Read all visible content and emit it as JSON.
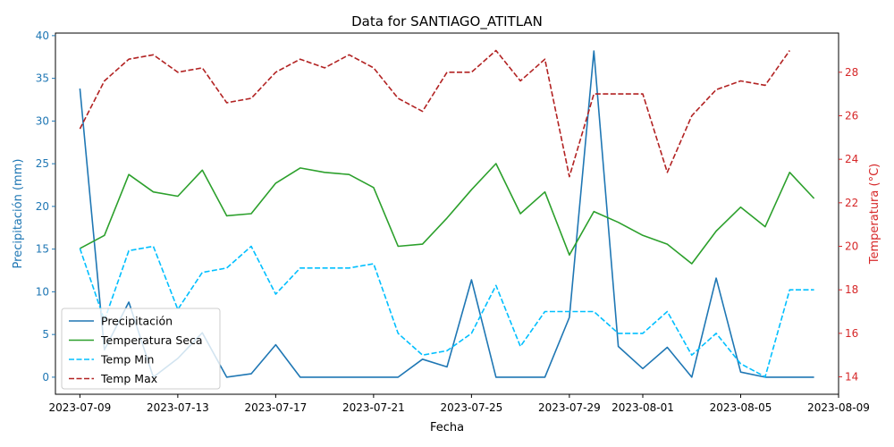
{
  "chart_data": {
    "type": "line",
    "title": "Data for SANTIAGO_ATITLAN",
    "xlabel": "Fecha",
    "ylabel_left": "Precipitación (mm)",
    "ylabel_right": "Temperatura (°C)",
    "x_tick_labels": [
      "2023-07-09",
      "2023-07-13",
      "2023-07-17",
      "2023-07-21",
      "2023-07-25",
      "2023-07-29",
      "2023-08-01",
      "2023-08-05",
      "2023-08-09"
    ],
    "y_left_ticks": [
      "0",
      "5",
      "10",
      "15",
      "20",
      "25",
      "30",
      "35",
      "40"
    ],
    "y_right_ticks": [
      "14",
      "16",
      "18",
      "20",
      "22",
      "24",
      "26",
      "28"
    ],
    "xlim": [
      "2023-07-08",
      "2023-08-09"
    ],
    "ylim_left": [
      -2,
      40.3
    ],
    "ylim_right": [
      13.2,
      29.8
    ],
    "left_axis_color": "#1f77b4",
    "right_axis_color": "#d62728",
    "legend_position": "lower-left",
    "dates": [
      "2023-07-09",
      "2023-07-10",
      "2023-07-11",
      "2023-07-12",
      "2023-07-13",
      "2023-07-14",
      "2023-07-15",
      "2023-07-16",
      "2023-07-17",
      "2023-07-18",
      "2023-07-19",
      "2023-07-20",
      "2023-07-21",
      "2023-07-22",
      "2023-07-23",
      "2023-07-24",
      "2023-07-25",
      "2023-07-26",
      "2023-07-27",
      "2023-07-28",
      "2023-07-29",
      "2023-07-30",
      "2023-07-31",
      "2023-08-01",
      "2023-08-02",
      "2023-08-03",
      "2023-08-04",
      "2023-08-05",
      "2023-08-06",
      "2023-08-07",
      "2023-08-08"
    ],
    "series": [
      {
        "name": "Precipitación",
        "axis": "left",
        "color": "#1f77b4",
        "style": "solid",
        "values": [
          33.8,
          3.2,
          8.8,
          0.0,
          2.2,
          5.2,
          0.0,
          0.4,
          3.8,
          0.0,
          0.0,
          0.0,
          0.0,
          0.0,
          2.1,
          1.2,
          11.4,
          0.0,
          0.0,
          0.0,
          7.0,
          38.2,
          3.6,
          1.0,
          3.5,
          0.0,
          11.6,
          0.6,
          0.0,
          0.0,
          0.0
        ]
      },
      {
        "name": "Temperatura Seca",
        "axis": "right",
        "color": "#2ca02c",
        "style": "solid",
        "values": [
          19.9,
          20.5,
          23.3,
          22.5,
          22.3,
          23.5,
          21.4,
          21.5,
          22.9,
          23.6,
          23.4,
          23.3,
          22.7,
          20.0,
          20.1,
          21.3,
          22.6,
          23.8,
          21.5,
          22.5,
          19.6,
          21.6,
          21.1,
          20.5,
          20.1,
          19.2,
          20.7,
          21.8,
          20.9,
          23.4,
          22.2
        ]
      },
      {
        "name": "Temp Min",
        "axis": "right",
        "color": "#00bfff",
        "style": "dashed",
        "values": [
          19.9,
          16.6,
          19.8,
          20.0,
          17.1,
          18.8,
          19.0,
          20.0,
          17.8,
          19.0,
          19.0,
          19.0,
          19.2,
          16.0,
          15.0,
          15.2,
          16.0,
          18.2,
          15.4,
          17.0,
          17.0,
          17.0,
          16.0,
          16.0,
          17.0,
          15.0,
          16.0,
          14.6,
          14.0,
          18.0,
          18.0
        ]
      },
      {
        "name": "Temp Max",
        "axis": "right",
        "color": "#b22222",
        "style": "dashed",
        "values": [
          25.4,
          27.6,
          28.6,
          28.8,
          28.0,
          28.2,
          26.6,
          26.8,
          28.0,
          28.6,
          28.2,
          28.8,
          28.2,
          26.8,
          26.2,
          28.0,
          28.0,
          29.0,
          27.6,
          28.6,
          23.2,
          27.0,
          27.0,
          27.0,
          23.4,
          26.0,
          27.2,
          27.6,
          27.4,
          29.0,
          null
        ]
      }
    ]
  }
}
